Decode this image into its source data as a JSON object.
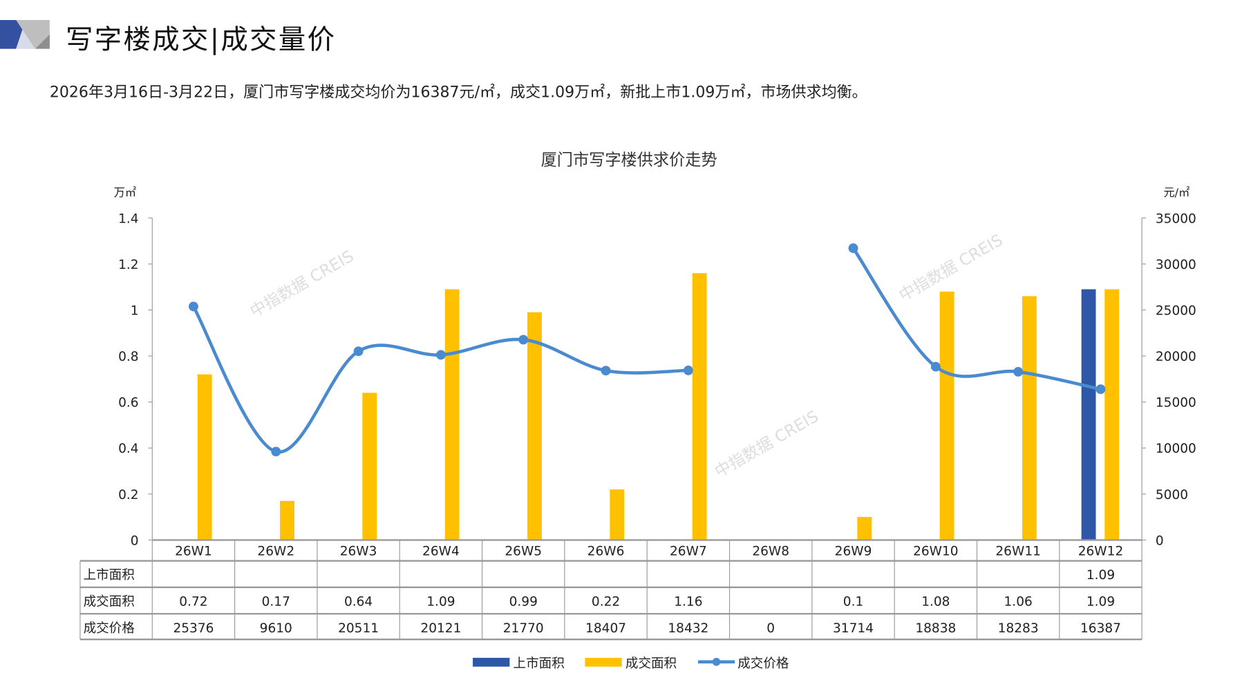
{
  "header": {
    "title": "写字楼成交|成交量价",
    "summary": "2026年3月16日-3月22日，厦门市写字楼成交均价为16387元/㎡，成交1.09万㎡，新批上市1.09万㎡，市场供求均衡。",
    "watermark": "中指数据 CREIS"
  },
  "colors": {
    "supply": "#2E57A7",
    "deal_area": "#FFC000",
    "price": "#4A8BD0",
    "logo_blue": "#3450A0",
    "logo_gray": "#BEBEBE"
  },
  "chart_data": {
    "type": "bar",
    "title": "厦门市写字楼供求价走势",
    "ylabel_left": "万㎡",
    "ylabel_right": "元/㎡",
    "ylim_left": [
      0,
      1.4
    ],
    "ylim_right": [
      0,
      35000
    ],
    "yticks_left": [
      "0",
      "0.2",
      "0.4",
      "0.6",
      "0.8",
      "1",
      "1.2",
      "1.4"
    ],
    "yticks_right": [
      "0",
      "5000",
      "10000",
      "15000",
      "20000",
      "25000",
      "30000",
      "35000"
    ],
    "categories": [
      "26W1",
      "26W2",
      "26W3",
      "26W4",
      "26W5",
      "26W6",
      "26W7",
      "26W8",
      "26W9",
      "26W10",
      "26W11",
      "26W12"
    ],
    "series": [
      {
        "name": "上市面积",
        "type": "bar",
        "axis": "left",
        "values": [
          null,
          null,
          null,
          null,
          null,
          null,
          null,
          null,
          null,
          null,
          null,
          1.09
        ],
        "labels": [
          "",
          "",
          "",
          "",
          "",
          "",
          "",
          "",
          "",
          "",
          "",
          "1.09"
        ]
      },
      {
        "name": "成交面积",
        "type": "bar",
        "axis": "left",
        "values": [
          0.72,
          0.17,
          0.64,
          1.09,
          0.99,
          0.22,
          1.16,
          null,
          0.1,
          1.08,
          1.06,
          1.09
        ],
        "labels": [
          "0.72",
          "0.17",
          "0.64",
          "1.09",
          "0.99",
          "0.22",
          "1.16",
          "",
          "0.1",
          "1.08",
          "1.06",
          "1.09"
        ]
      },
      {
        "name": "成交价格",
        "type": "line",
        "axis": "right",
        "values": [
          25376,
          9610,
          20511,
          20121,
          21770,
          18407,
          18432,
          0,
          31714,
          18838,
          18283,
          16387
        ],
        "labels": [
          "25376",
          "9610",
          "20511",
          "20121",
          "21770",
          "18407",
          "18432",
          "0",
          "31714",
          "18838",
          "18283",
          "16387"
        ]
      }
    ],
    "legend_position": "bottom",
    "grid": false,
    "data_table": true
  }
}
